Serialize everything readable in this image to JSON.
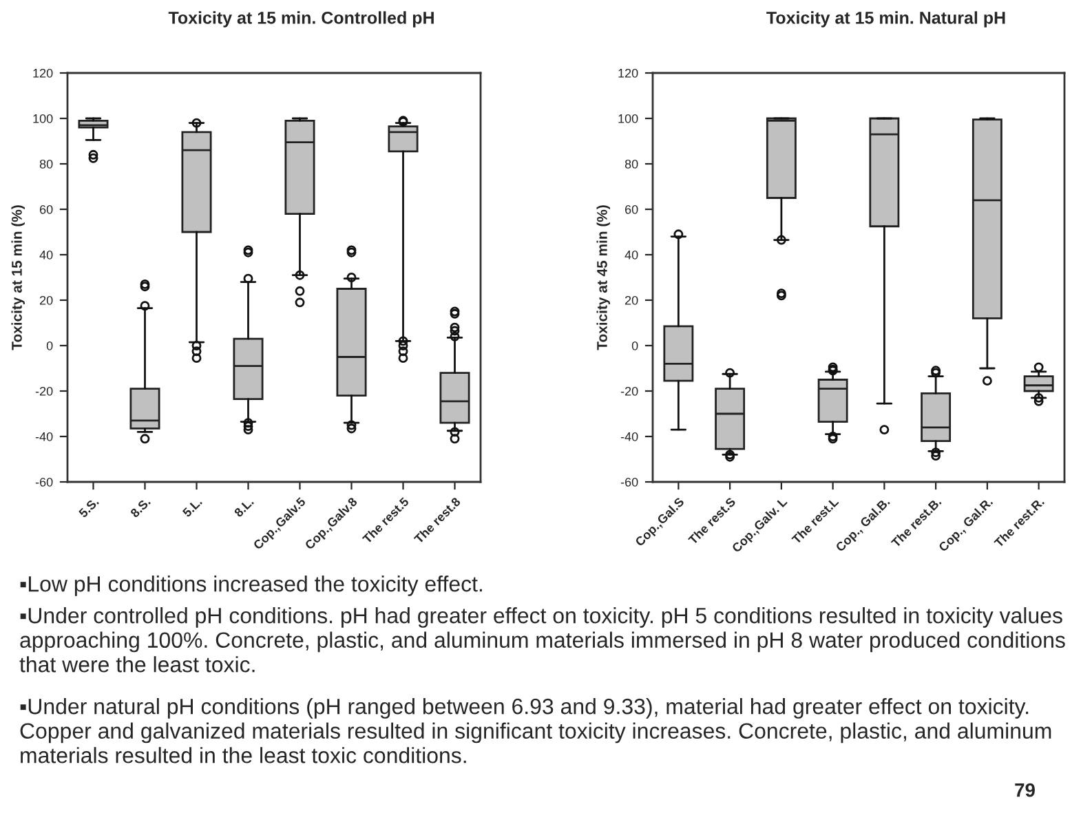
{
  "chart_data": [
    {
      "type": "box",
      "title": "Toxicity at 15 min. Controlled pH",
      "ylabel": "Toxicity at 15 min (%)",
      "categories": [
        "5.S.",
        "8.S.",
        "5.L.",
        "8.L.",
        "Cop.,Galv.5",
        "Cop.,Galv.8",
        "The rest.5",
        "The rest.8"
      ],
      "color": "#c0c0c0",
      "ylim": [
        -60,
        120
      ],
      "yticks": [
        -60,
        -40,
        -20,
        0,
        20,
        40,
        60,
        80,
        100,
        120
      ],
      "grid": false,
      "boxes": [
        {
          "low": 90.5,
          "q1": 96,
          "median": 97,
          "q3": 99,
          "high": 100,
          "outliers": [
            84,
            82.5
          ]
        },
        {
          "low": -38,
          "q1": -36.5,
          "median": -33,
          "q3": -19,
          "high": 16.5,
          "outliers": [
            27,
            26,
            17.5,
            -41
          ]
        },
        {
          "low": 1.5,
          "q1": 50,
          "median": 86,
          "q3": 94,
          "high": 98,
          "outliers": [
            98,
            0,
            -2.5,
            -5.5
          ]
        },
        {
          "low": -33.5,
          "q1": -23.5,
          "median": -9,
          "q3": 3,
          "high": 28,
          "outliers": [
            42,
            41,
            29.5,
            -34,
            -35.5,
            -37
          ]
        },
        {
          "low": 31,
          "q1": 58,
          "median": 89.5,
          "q3": 99,
          "high": 100,
          "outliers": [
            31,
            24,
            19
          ]
        },
        {
          "low": -34,
          "q1": -22,
          "median": -5,
          "q3": 25,
          "high": 29.5,
          "outliers": [
            42,
            41,
            30,
            -35,
            -36.5
          ]
        },
        {
          "low": 2,
          "q1": 85.5,
          "median": 94,
          "q3": 96.5,
          "high": 98,
          "outliers": [
            99,
            98.5,
            2,
            0,
            -2.5,
            -5.5
          ]
        },
        {
          "low": -37.5,
          "q1": -34,
          "median": -24.5,
          "q3": -12,
          "high": 3.5,
          "outliers": [
            15,
            14,
            8,
            6.5,
            4,
            -38,
            -41
          ]
        }
      ],
      "annotations": [
        "▪Low pH conditions increased the toxicity effect.",
        "▪Under controlled pH conditions. pH had greater effect on toxicity. pH 5 conditions resulted in toxicity values approaching 100%. Concrete, plastic, and aluminum materials immersed in pH 8 water produced conditions that were the least toxic.",
        "▪Under natural pH conditions (pH ranged between 6.93 and 9.33), material had greater effect on toxicity. Copper and galvanized materials resulted in significant toxicity increases. Concrete, plastic, and aluminum materials resulted in the least toxic conditions.",
        "79"
      ]
    },
    {
      "type": "box",
      "title": "Toxicity at 15 min. Natural pH",
      "ylabel": "Toxicity at 45 min (%)",
      "categories": [
        "Cop.,Gal.S",
        "The rest.S",
        "Cop.,Galv. L",
        "The rest.L",
        "Cop., Gal.B.",
        "The rest.B.",
        "Cop., Gal.R.",
        "The rest.R."
      ],
      "color": "#c0c0c0",
      "ylim": [
        -60,
        120
      ],
      "yticks": [
        -60,
        -40,
        -20,
        0,
        20,
        40,
        60,
        80,
        100,
        120
      ],
      "grid": false,
      "boxes": [
        {
          "low": -37,
          "q1": -15.5,
          "median": -8,
          "q3": 8.5,
          "high": 48,
          "outliers": [
            49
          ]
        },
        {
          "low": -48,
          "q1": -45.5,
          "median": -30,
          "q3": -19,
          "high": -12.5,
          "outliers": [
            -12,
            -48,
            -49
          ]
        },
        {
          "low": 46.5,
          "q1": 65,
          "median": 99,
          "q3": 100,
          "high": 100,
          "outliers": [
            46.5,
            23,
            22
          ]
        },
        {
          "low": -39,
          "q1": -33.5,
          "median": -19,
          "q3": -15,
          "high": -11.5,
          "outliers": [
            -9.5,
            -10.5,
            -11,
            -40,
            -41
          ]
        },
        {
          "low": -25.5,
          "q1": 52.5,
          "median": 93,
          "q3": 100,
          "high": 100,
          "outliers": [
            -37
          ]
        },
        {
          "low": -46.5,
          "q1": -42,
          "median": -36,
          "q3": -21,
          "high": -13.5,
          "outliers": [
            -11,
            -12,
            -47,
            -48.5
          ]
        },
        {
          "low": -10,
          "q1": 12,
          "median": 64,
          "q3": 99.5,
          "high": 100,
          "outliers": [
            -15.5
          ]
        },
        {
          "low": -23,
          "q1": -20,
          "median": -17.5,
          "q3": -13.5,
          "high": -11.5,
          "outliers": [
            -9.5,
            -23,
            -24.5
          ]
        }
      ]
    }
  ]
}
